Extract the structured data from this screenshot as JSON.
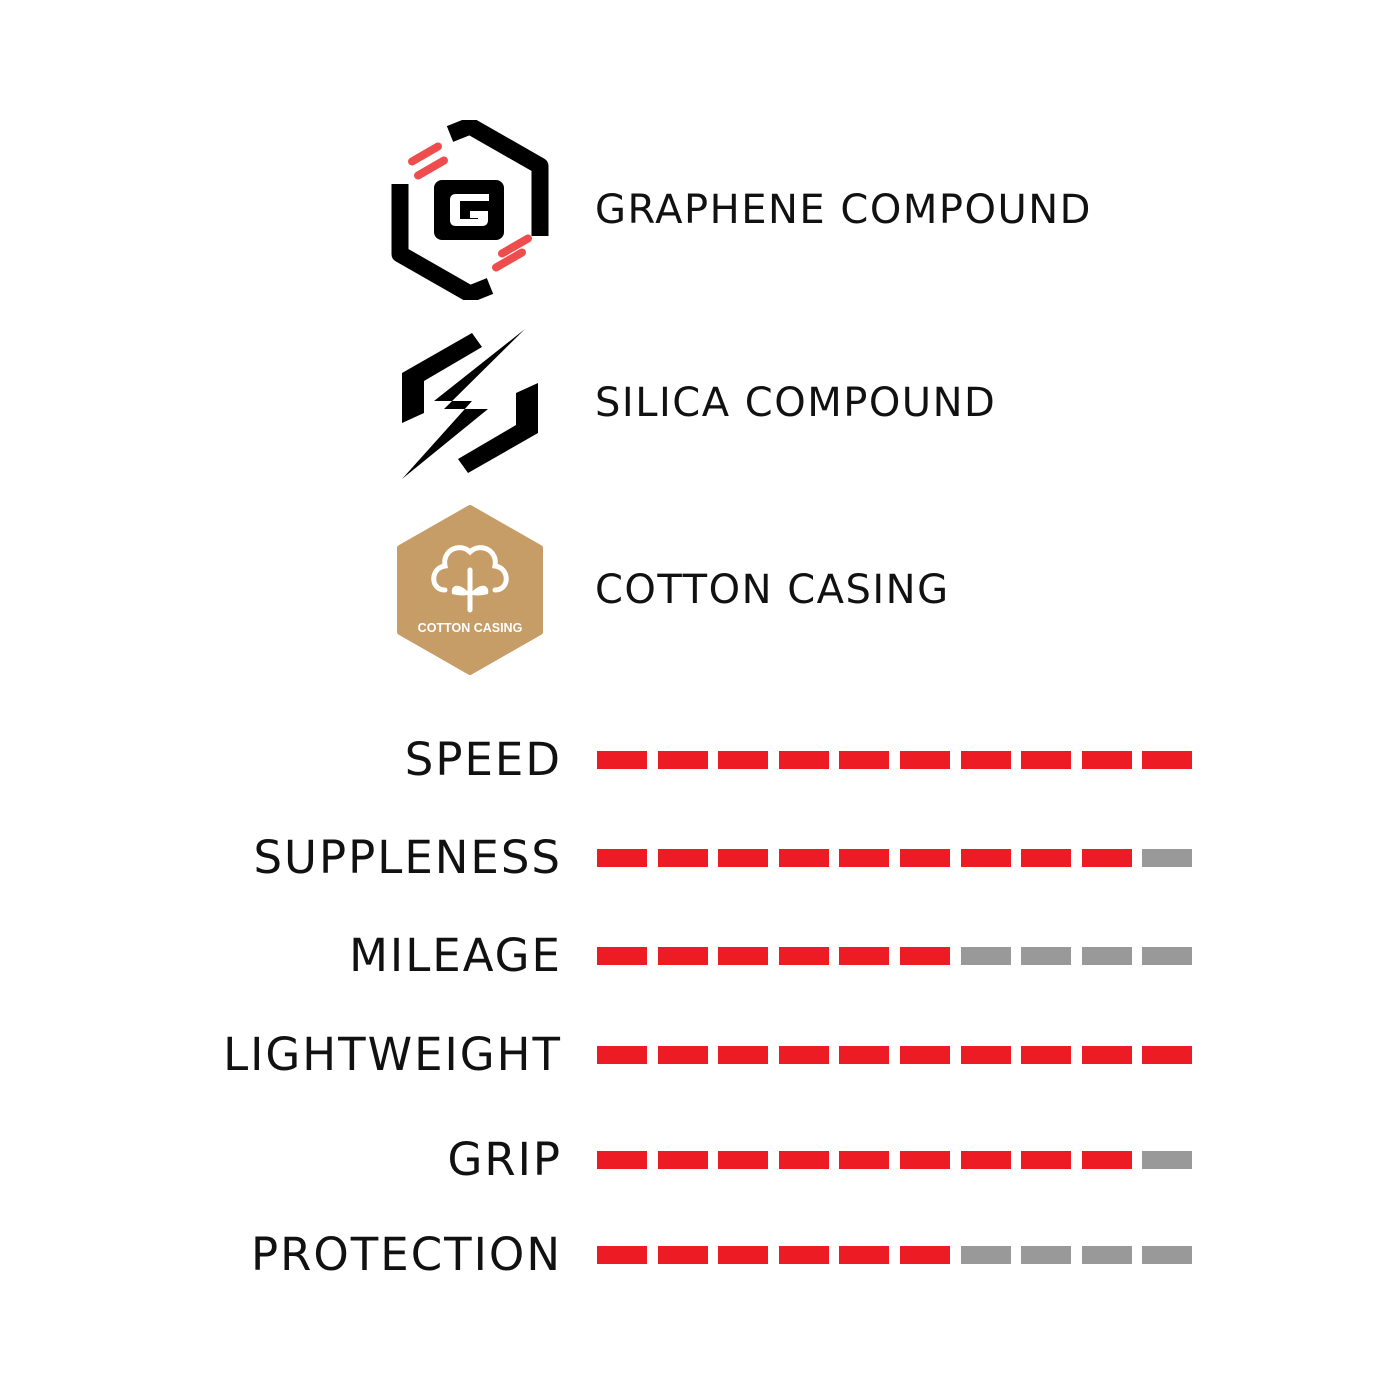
{
  "features": [
    {
      "icon": "graphene-icon",
      "label": "GRAPHENE COMPOUND"
    },
    {
      "icon": "silica-icon",
      "label": "SILICA COMPOUND"
    },
    {
      "icon": "cotton-casing-icon",
      "label": "COTTON CASING",
      "badge_text": "COTTON CASING",
      "badge_color": "#c69c67"
    }
  ],
  "rating_scale_max": 10,
  "colors": {
    "filled": "#ed1c24",
    "empty": "#999999",
    "logo_accent": "#ef4d4d",
    "text": "#111111"
  },
  "ratings": [
    {
      "label": "SPEED",
      "value": 10
    },
    {
      "label": "SUPPLENESS",
      "value": 9
    },
    {
      "label": "MILEAGE",
      "value": 6
    },
    {
      "label": "LIGHTWEIGHT",
      "value": 10
    },
    {
      "label": "GRIP",
      "value": 9
    },
    {
      "label": "PROTECTION",
      "value": 6
    }
  ]
}
